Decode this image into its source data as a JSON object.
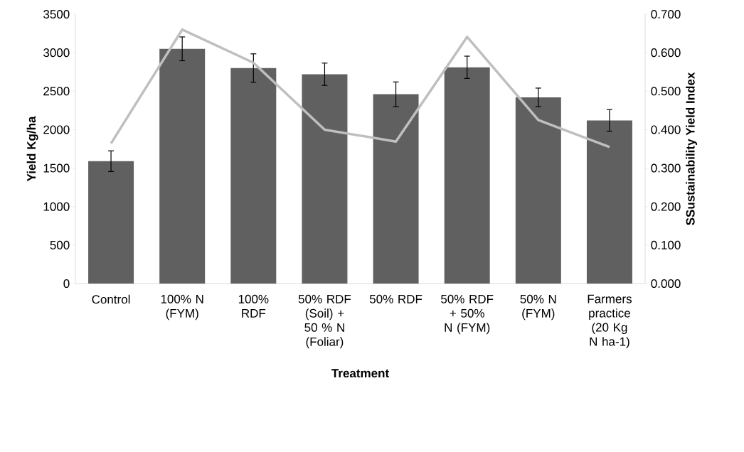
{
  "chart_data": {
    "type": "bar",
    "xlabel": "Treatment",
    "ylabel": "Yield Kg/ha",
    "y2label": "SSustainability Yield Index",
    "categories": [
      "Control",
      "100% N (FYM)",
      "100% RDF",
      "50% RDF (Soil) + 50 % N (Foliar)",
      "50% RDF",
      "50% RDF + 50% N (FYM)",
      "50% N (FYM)",
      "Farmers practice (20 Kg N ha-1)"
    ],
    "series": [
      {
        "color": "#606060",
        "values": [
          1590,
          3050,
          2800,
          2720,
          2460,
          2810,
          2420,
          2120
        ],
        "errors": [
          135,
          155,
          185,
          145,
          160,
          145,
          120,
          140
        ]
      },
      {
        "type": "line",
        "axis": "y2",
        "color": "#bfbfbf",
        "values": [
          0.364,
          0.66,
          0.574,
          0.4,
          0.369,
          0.641,
          0.425,
          0.355
        ]
      }
    ],
    "ylim": [
      0,
      3500
    ],
    "yticks": [
      0,
      500,
      1000,
      1500,
      2000,
      2500,
      3000,
      3500
    ],
    "y2lim": [
      0,
      0.7
    ],
    "y2ticks": [
      {
        "value": 0,
        "label": "0.000"
      },
      {
        "value": 0.1,
        "label": "0.100"
      },
      {
        "value": 0.2,
        "label": "0.200"
      },
      {
        "value": 0.3,
        "label": "0.300"
      },
      {
        "value": 0.4,
        "label": "0.400"
      },
      {
        "value": 0.5,
        "label": "0.500"
      },
      {
        "value": 0.6,
        "label": "0.600"
      },
      {
        "value": 0.7,
        "label": "0.700"
      }
    ]
  }
}
